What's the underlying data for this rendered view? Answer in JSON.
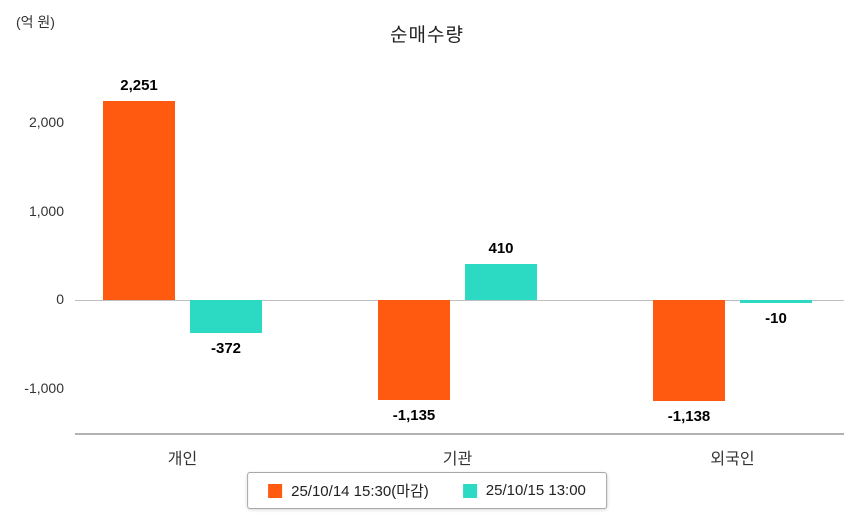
{
  "title": "순매수량",
  "unit_label": "(억 원)",
  "chart_data": {
    "type": "bar",
    "title": "순매수량",
    "ylabel": "(억 원)",
    "categories": [
      "개인",
      "기관",
      "외국인"
    ],
    "series": [
      {
        "name": "25/10/14 15:30(마감)",
        "color": "#ff5a0f",
        "values": [
          2251,
          -1135,
          -1138
        ],
        "labels": [
          "2,251",
          "-1,135",
          "-1,138"
        ]
      },
      {
        "name": "25/10/15 13:00",
        "color": "#2cd9c3",
        "values": [
          -372,
          410,
          -10
        ],
        "labels": [
          "-372",
          "410",
          "-10"
        ]
      }
    ],
    "ylim": [
      -1300,
      2500
    ],
    "yticks": [
      {
        "value": 2000,
        "label": "2,000"
      },
      {
        "value": 1000,
        "label": "1,000"
      },
      {
        "value": 0,
        "label": "0"
      },
      {
        "value": -1000,
        "label": "-1,000"
      }
    ],
    "grid": false,
    "legend_position": "bottom"
  },
  "legend": {
    "items": [
      {
        "label": "25/10/14 15:30(마감)",
        "color": "#ff5a0f"
      },
      {
        "label": "25/10/15 13:00",
        "color": "#2cd9c3"
      }
    ]
  }
}
